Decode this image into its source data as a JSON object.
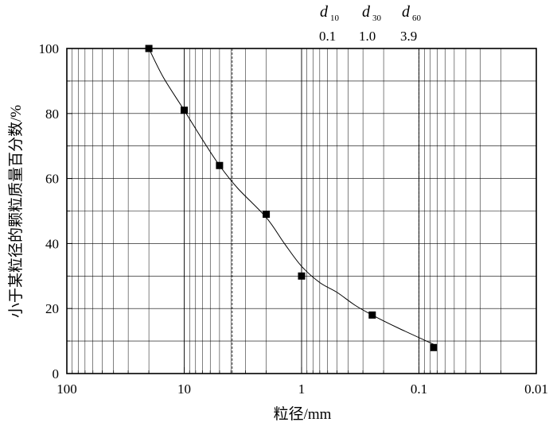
{
  "chart_data": {
    "type": "scatter",
    "xscale": "log",
    "xreversed": true,
    "xlim": [
      100,
      0.01
    ],
    "ylim": [
      0,
      100
    ],
    "xlabel": "粒径/mm",
    "ylabel": "小于某粒径的颗粒质量百分数/%",
    "grid": true,
    "xticks": [
      "100",
      "10",
      "1",
      "0.1",
      "0.01"
    ],
    "yticks": [
      "0",
      "20",
      "40",
      "60",
      "80",
      "100"
    ],
    "series": [
      {
        "x": [
          20,
          10,
          5,
          2,
          1,
          0.25,
          0.075
        ],
        "y": [
          100,
          81,
          64,
          49,
          30,
          18,
          8
        ]
      }
    ],
    "curve": {
      "x": [
        20,
        15,
        10,
        7,
        5,
        3.5,
        2,
        1.4,
        1,
        0.7,
        0.5,
        0.35,
        0.25,
        0.15,
        0.075
      ],
      "y": [
        100,
        91,
        81,
        72,
        64,
        57,
        48,
        40,
        33,
        28,
        25,
        21,
        18,
        14,
        9
      ]
    },
    "reference_lines": [
      {
        "x": 3.9,
        "style": "dashed"
      },
      {
        "x": 0.1,
        "style": "dashed"
      }
    ],
    "annotations": [
      {
        "symbol": "d",
        "subscript": "10",
        "value": "0.1"
      },
      {
        "symbol": "d",
        "subscript": "30",
        "value": "1.0"
      },
      {
        "symbol": "d",
        "subscript": "60",
        "value": "3.9"
      }
    ]
  }
}
